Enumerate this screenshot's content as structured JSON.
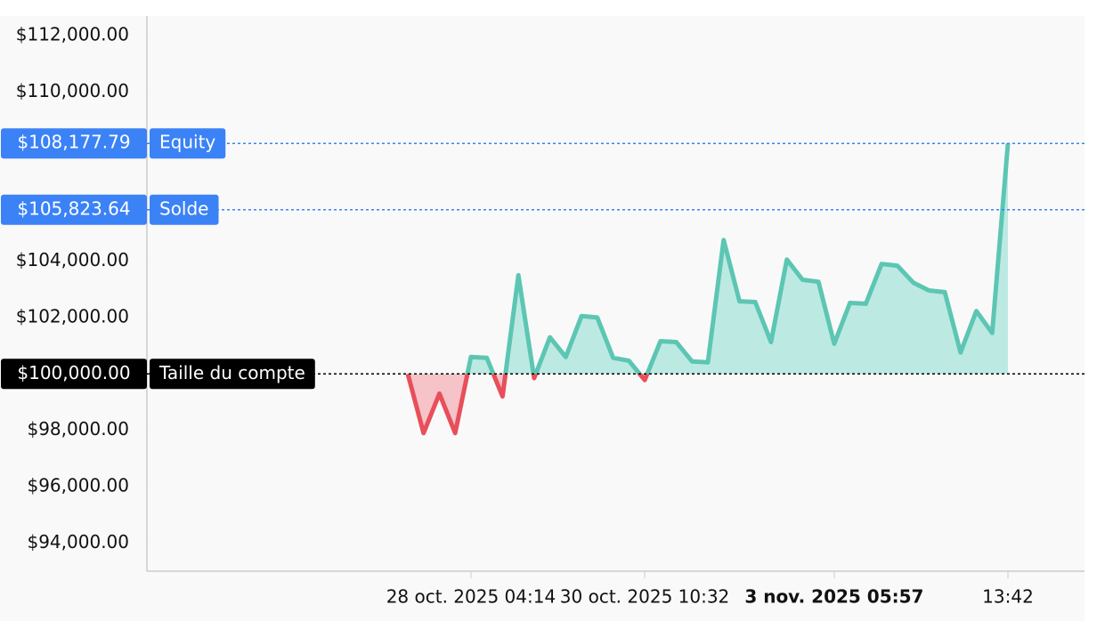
{
  "chart_data": {
    "type": "line",
    "categories": [
      null,
      null,
      null,
      null,
      "28 oct. 2025 04:14",
      null,
      null,
      null,
      null,
      null,
      null,
      null,
      null,
      null,
      null,
      "30 oct. 2025 10:32",
      null,
      null,
      null,
      null,
      null,
      null,
      null,
      null,
      null,
      null,
      null,
      "3 nov. 2025 05:57",
      null,
      null,
      null,
      null,
      null,
      null,
      null,
      null,
      null,
      null,
      "13:42"
    ],
    "values": [
      100000,
      97900,
      99300,
      97900,
      100600,
      100570,
      99200,
      103500,
      99850,
      101300,
      100600,
      102050,
      102000,
      100570,
      100470,
      99780,
      101160,
      101130,
      100440,
      100410,
      104750,
      102580,
      102550,
      101130,
      104060,
      103340,
      103270,
      101070,
      102520,
      102490,
      103900,
      103840,
      103240,
      102960,
      102900,
      100760,
      102230,
      101450,
      108177.79
    ],
    "color": "#5cc6b3",
    "fill_color": "#bde9e3",
    "negative_color": "#e84f5a",
    "negative_fill_color": "#f5c3c8",
    "highlight_category": 27,
    "ylim": [
      93000,
      112700
    ],
    "yticks": [
      {
        "value": 94000,
        "label": "$94,000.00"
      },
      {
        "value": 96000,
        "label": "$96,000.00"
      },
      {
        "value": 98000,
        "label": "$98,000.00"
      },
      {
        "value": 102000,
        "label": "$102,000.00"
      },
      {
        "value": 104000,
        "label": "$104,000.00"
      },
      {
        "value": 110000,
        "label": "$110,000.00"
      },
      {
        "value": 112000,
        "label": "$112,000.00"
      }
    ],
    "reference_lines": [
      {
        "name": "Taille du compte",
        "value": 100000,
        "label": "$100,000.00",
        "color": "#000000",
        "baseline": true
      },
      {
        "name": "Solde",
        "value": 105823.64,
        "label": "$105,823.64",
        "color": "#3b82f6"
      },
      {
        "name": "Equity",
        "value": 108177.79,
        "label": "$108,177.79",
        "color": "#3b82f6"
      }
    ]
  }
}
